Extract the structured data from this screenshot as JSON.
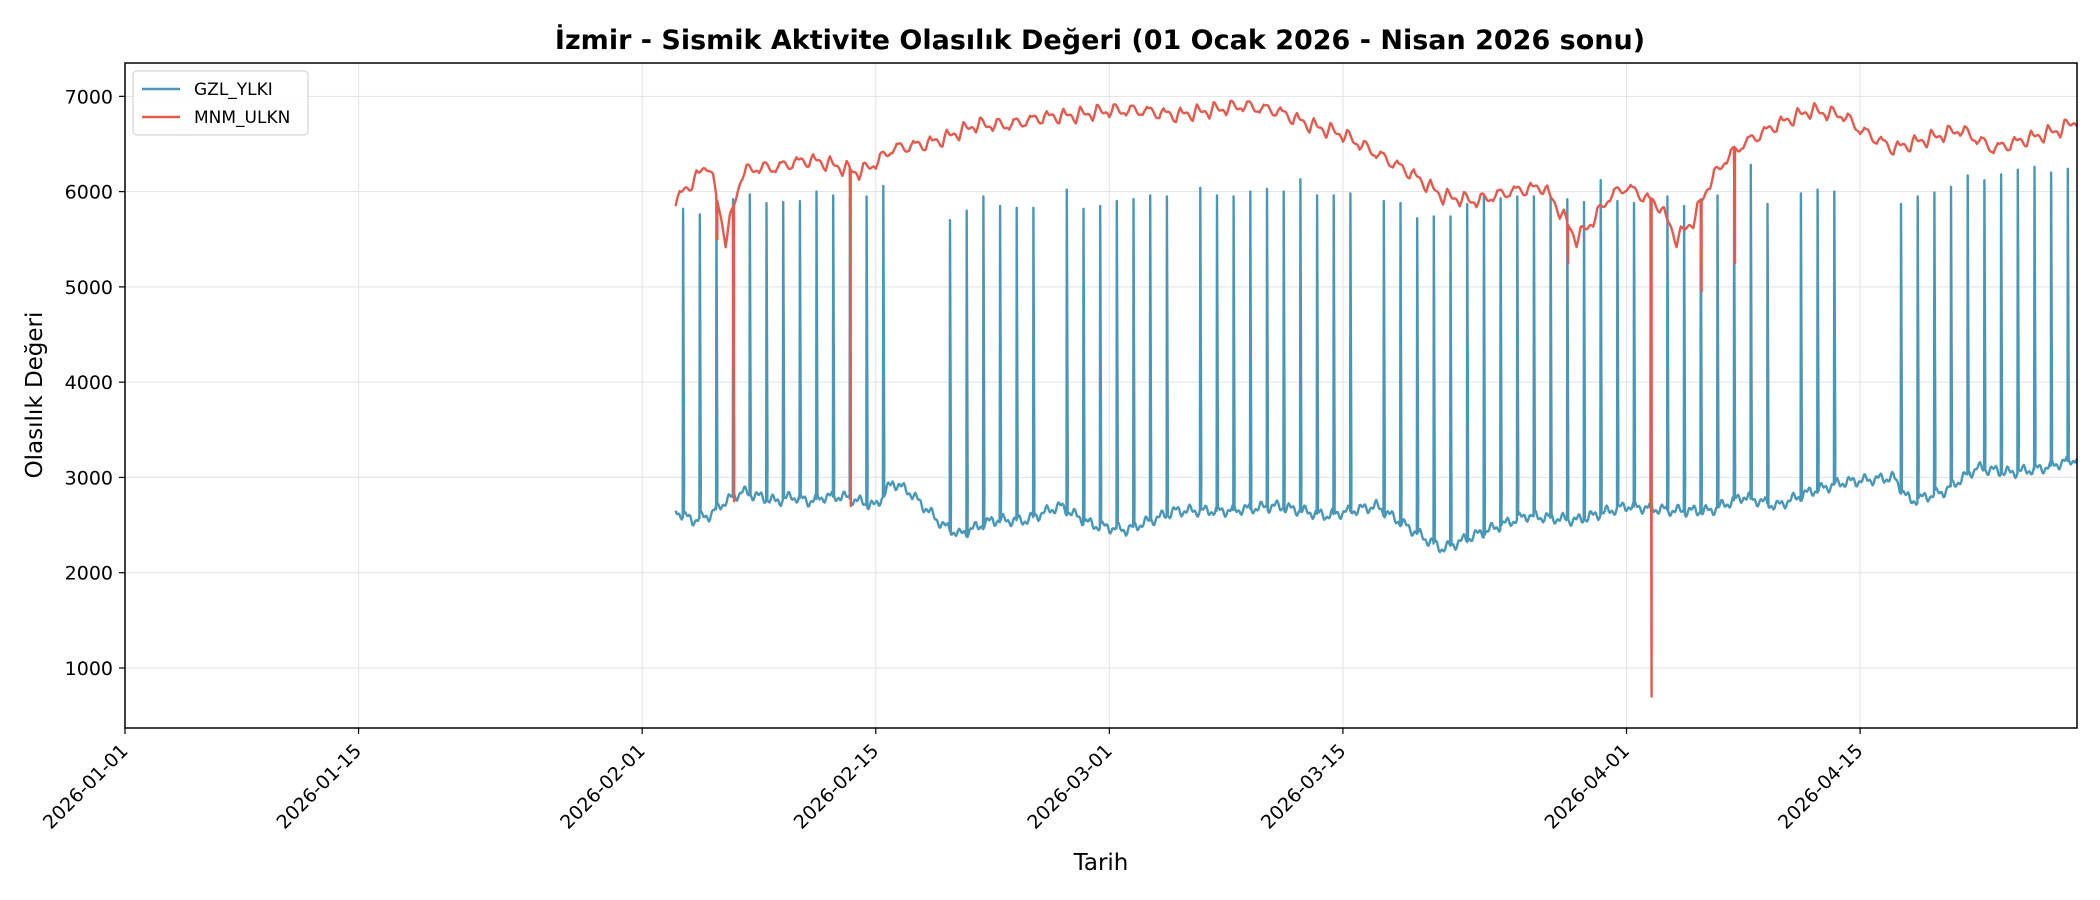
{
  "chart_data": {
    "type": "line",
    "title": "İzmir - Sismik Aktivite Olasılık Değeri (01 Ocak 2026 - Nisan 2026 sonu)",
    "xlabel": "Tarih",
    "ylabel": "Olasılık Değeri",
    "xlim": [
      "2026-01-01",
      "2026-04-28"
    ],
    "ylim": [
      370,
      7350
    ],
    "x_ticks": [
      "2026-01-01",
      "2026-01-15",
      "2026-02-01",
      "2026-02-15",
      "2026-03-01",
      "2026-03-15",
      "2026-04-01",
      "2026-04-15"
    ],
    "y_ticks": [
      1000,
      2000,
      3000,
      4000,
      5000,
      6000,
      7000
    ],
    "grid": true,
    "legend_position": "top-left",
    "series": [
      {
        "name": "GZL_YLKI",
        "color": "#4a98b7",
        "baseline_points": [
          [
            "2026-02-03",
            2650
          ],
          [
            "2026-02-04",
            2550
          ],
          [
            "2026-02-05",
            2600
          ],
          [
            "2026-02-06",
            2750
          ],
          [
            "2026-02-07",
            2850
          ],
          [
            "2026-02-08",
            2800
          ],
          [
            "2026-02-09",
            2750
          ],
          [
            "2026-02-10",
            2800
          ],
          [
            "2026-02-11",
            2750
          ],
          [
            "2026-02-12",
            2800
          ],
          [
            "2026-02-13",
            2800
          ],
          [
            "2026-02-14",
            2750
          ],
          [
            "2026-02-15",
            2700
          ],
          [
            "2026-02-16",
            2950
          ],
          [
            "2026-02-17",
            2850
          ],
          [
            "2026-02-19",
            2500
          ],
          [
            "2026-02-20",
            2400
          ],
          [
            "2026-02-22",
            2550
          ],
          [
            "2026-02-24",
            2550
          ],
          [
            "2026-02-26",
            2700
          ],
          [
            "2026-02-28",
            2500
          ],
          [
            "2026-03-02",
            2450
          ],
          [
            "2026-03-05",
            2650
          ],
          [
            "2026-03-08",
            2650
          ],
          [
            "2026-03-11",
            2700
          ],
          [
            "2026-03-14",
            2600
          ],
          [
            "2026-03-17",
            2700
          ],
          [
            "2026-03-20",
            2350
          ],
          [
            "2026-03-21",
            2250
          ],
          [
            "2026-03-23",
            2400
          ],
          [
            "2026-03-26",
            2600
          ],
          [
            "2026-03-29",
            2550
          ],
          [
            "2026-04-01",
            2700
          ],
          [
            "2026-04-04",
            2650
          ],
          [
            "2026-04-06",
            2650
          ],
          [
            "2026-04-08",
            2800
          ],
          [
            "2026-04-10",
            2700
          ],
          [
            "2026-04-12",
            2850
          ],
          [
            "2026-04-14",
            2950
          ],
          [
            "2026-04-17",
            3000
          ],
          [
            "2026-04-18",
            2750
          ],
          [
            "2026-04-20",
            2850
          ],
          [
            "2026-04-22",
            3100
          ],
          [
            "2026-04-24",
            3050
          ],
          [
            "2026-04-26",
            3100
          ],
          [
            "2026-04-28",
            3200
          ]
        ],
        "spikes": [
          [
            "2026-02-03",
            5820
          ],
          [
            "2026-02-04",
            5760
          ],
          [
            "2026-02-05",
            5880
          ],
          [
            "2026-02-06",
            5920
          ],
          [
            "2026-02-07",
            5970
          ],
          [
            "2026-02-08",
            5880
          ],
          [
            "2026-02-09",
            5890
          ],
          [
            "2026-02-10",
            5900
          ],
          [
            "2026-02-11",
            6000
          ],
          [
            "2026-02-12",
            5960
          ],
          [
            "2026-02-13",
            5940
          ],
          [
            "2026-02-14",
            5950
          ],
          [
            "2026-02-15",
            6060
          ],
          [
            "2026-02-19",
            5700
          ],
          [
            "2026-02-20",
            5800
          ],
          [
            "2026-02-21",
            5950
          ],
          [
            "2026-02-22",
            5850
          ],
          [
            "2026-02-23",
            5830
          ],
          [
            "2026-02-24",
            5830
          ],
          [
            "2026-02-26",
            6020
          ],
          [
            "2026-02-27",
            5820
          ],
          [
            "2026-02-28",
            5850
          ],
          [
            "2026-03-01",
            5900
          ],
          [
            "2026-03-02",
            5920
          ],
          [
            "2026-03-03",
            5960
          ],
          [
            "2026-03-04",
            5950
          ],
          [
            "2026-03-06",
            6040
          ],
          [
            "2026-03-07",
            5960
          ],
          [
            "2026-03-08",
            5950
          ],
          [
            "2026-03-09",
            6000
          ],
          [
            "2026-03-10",
            6030
          ],
          [
            "2026-03-11",
            6000
          ],
          [
            "2026-03-12",
            6130
          ],
          [
            "2026-03-13",
            5960
          ],
          [
            "2026-03-14",
            5960
          ],
          [
            "2026-03-15",
            5980
          ],
          [
            "2026-03-17",
            5900
          ],
          [
            "2026-03-18",
            5880
          ],
          [
            "2026-03-19",
            5720
          ],
          [
            "2026-03-20",
            5740
          ],
          [
            "2026-03-21",
            5740
          ],
          [
            "2026-03-22",
            5870
          ],
          [
            "2026-03-23",
            5970
          ],
          [
            "2026-03-24",
            5930
          ],
          [
            "2026-03-25",
            5950
          ],
          [
            "2026-03-26",
            5950
          ],
          [
            "2026-03-27",
            5930
          ],
          [
            "2026-03-28",
            5920
          ],
          [
            "2026-03-29",
            5890
          ],
          [
            "2026-03-30",
            6120
          ],
          [
            "2026-03-31",
            5900
          ],
          [
            "2026-04-01",
            5880
          ],
          [
            "2026-04-02",
            5920
          ],
          [
            "2026-04-03",
            5950
          ],
          [
            "2026-04-04",
            5850
          ],
          [
            "2026-04-05",
            5920
          ],
          [
            "2026-04-06",
            5960
          ],
          [
            "2026-04-07",
            6040
          ],
          [
            "2026-04-08",
            6280
          ],
          [
            "2026-04-09",
            5870
          ],
          [
            "2026-04-11",
            5980
          ],
          [
            "2026-04-12",
            6020
          ],
          [
            "2026-04-13",
            6000
          ],
          [
            "2026-04-17",
            5870
          ],
          [
            "2026-04-18",
            5950
          ],
          [
            "2026-04-19",
            5990
          ],
          [
            "2026-04-20",
            6050
          ],
          [
            "2026-04-21",
            6170
          ],
          [
            "2026-04-22",
            6120
          ],
          [
            "2026-04-23",
            6180
          ],
          [
            "2026-04-24",
            6230
          ],
          [
            "2026-04-25",
            6260
          ],
          [
            "2026-04-26",
            6200
          ],
          [
            "2026-04-27",
            6240
          ],
          [
            "2026-04-28",
            6230
          ]
        ]
      },
      {
        "name": "MNM_ULKN",
        "color": "#e45b4e",
        "baseline_points": [
          [
            "2026-02-03",
            5900
          ],
          [
            "2026-02-04",
            6100
          ],
          [
            "2026-02-05",
            6300
          ],
          [
            "2026-02-06",
            5500
          ],
          [
            "2026-02-07",
            6200
          ],
          [
            "2026-02-08",
            6250
          ],
          [
            "2026-02-09",
            6250
          ],
          [
            "2026-02-10",
            6300
          ],
          [
            "2026-02-11",
            6330
          ],
          [
            "2026-02-12",
            6300
          ],
          [
            "2026-02-14",
            6200
          ],
          [
            "2026-02-15",
            6300
          ],
          [
            "2026-02-16",
            6450
          ],
          [
            "2026-02-18",
            6500
          ],
          [
            "2026-02-19",
            6550
          ],
          [
            "2026-02-21",
            6700
          ],
          [
            "2026-02-23",
            6700
          ],
          [
            "2026-02-25",
            6780
          ],
          [
            "2026-02-27",
            6800
          ],
          [
            "2026-03-01",
            6850
          ],
          [
            "2026-03-03",
            6850
          ],
          [
            "2026-03-05",
            6800
          ],
          [
            "2026-03-07",
            6850
          ],
          [
            "2026-03-09",
            6900
          ],
          [
            "2026-03-11",
            6850
          ],
          [
            "2026-03-13",
            6700
          ],
          [
            "2026-03-15",
            6600
          ],
          [
            "2026-03-17",
            6400
          ],
          [
            "2026-03-19",
            6200
          ],
          [
            "2026-03-21",
            5950
          ],
          [
            "2026-03-23",
            5900
          ],
          [
            "2026-03-25",
            6000
          ],
          [
            "2026-03-27",
            6050
          ],
          [
            "2026-03-28",
            5800
          ],
          [
            "2026-03-29",
            5500
          ],
          [
            "2026-03-30",
            5700
          ],
          [
            "2026-03-31",
            5950
          ],
          [
            "2026-04-01",
            6050
          ],
          [
            "2026-04-03",
            5850
          ],
          [
            "2026-04-04",
            5500
          ],
          [
            "2026-04-05",
            5700
          ],
          [
            "2026-04-06",
            6100
          ],
          [
            "2026-04-07",
            6350
          ],
          [
            "2026-04-08",
            6500
          ],
          [
            "2026-04-10",
            6700
          ],
          [
            "2026-04-12",
            6850
          ],
          [
            "2026-04-14",
            6800
          ],
          [
            "2026-04-15",
            6650
          ],
          [
            "2026-04-17",
            6450
          ],
          [
            "2026-04-19",
            6550
          ],
          [
            "2026-04-21",
            6650
          ],
          [
            "2026-04-23",
            6450
          ],
          [
            "2026-04-25",
            6550
          ],
          [
            "2026-04-27",
            6650
          ],
          [
            "2026-04-28",
            6750
          ]
        ],
        "dips": [
          [
            "2026-02-05",
            5500
          ],
          [
            "2026-02-06",
            2750
          ],
          [
            "2026-02-13",
            5000
          ],
          [
            "2026-02-13",
            2700
          ],
          [
            "2026-03-28",
            5250
          ],
          [
            "2026-04-02",
            700
          ],
          [
            "2026-04-05",
            4950
          ],
          [
            "2026-04-07",
            5250
          ]
        ]
      }
    ]
  }
}
